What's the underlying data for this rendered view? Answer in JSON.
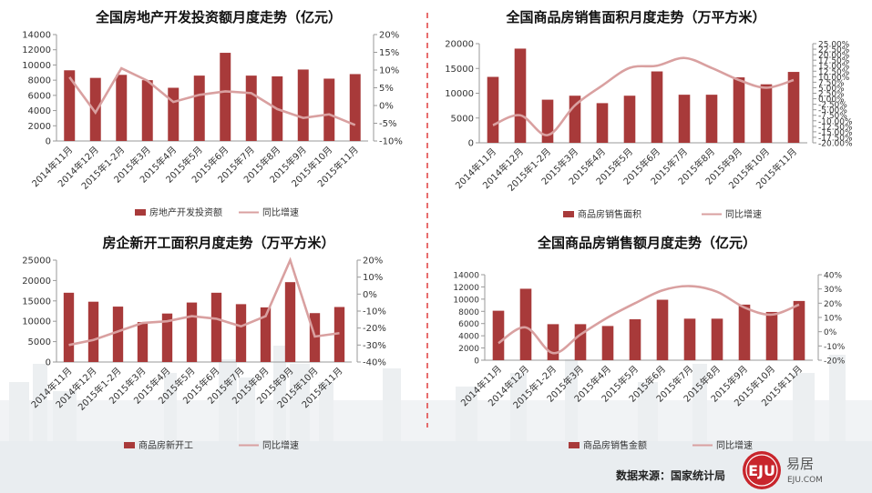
{
  "colors": {
    "bar": "#a83a3a",
    "line": "#d9a0a0",
    "axis": "#999999",
    "text": "#333333",
    "divider": "#e24a4a",
    "logo_red": "#c8252c"
  },
  "charts": [
    {
      "title": "全国房地产开发投资额月度走势（亿元）",
      "categories": [
        "2014年11月",
        "2014年12月",
        "2015年1-2月",
        "2015年3月",
        "2015年4月",
        "2015年5月",
        "2015年6月",
        "2015年7月",
        "2015年8月",
        "2015年9月",
        "2015年10月",
        "2015年11月"
      ],
      "bar_name": "房地产开发投资额",
      "bar_values": [
        9300,
        8300,
        8700,
        8000,
        7000,
        8600,
        11600,
        8600,
        8500,
        9400,
        8200,
        8800
      ],
      "line_name": "同比增速",
      "line_values": [
        8,
        -2,
        10.5,
        7,
        1,
        3,
        4,
        3.5,
        -1,
        -3.5,
        -2.5,
        -5.5
      ],
      "left_axis": {
        "min": 0,
        "max": 14000,
        "step": 2000,
        "ticks": [
          "0",
          "2000",
          "4000",
          "6000",
          "8000",
          "10000",
          "12000",
          "14000"
        ]
      },
      "right_axis": {
        "min": -10,
        "max": 20,
        "step": 5,
        "ticks": [
          "-10%",
          "-5%",
          "0%",
          "5%",
          "10%",
          "15%",
          "20%"
        ]
      }
    },
    {
      "title": "全国商品房销售面积月度走势（万平方米）",
      "categories": [
        "2014年11月",
        "2014年12月",
        "2015年1-2月",
        "2015年3月",
        "2015年4月",
        "2015年5月",
        "2015年6月",
        "2015年7月",
        "2015年8月",
        "2015年9月",
        "2015年10月",
        "2015年11月"
      ],
      "bar_name": "商品房销售面积",
      "bar_values": [
        13300,
        19000,
        8700,
        9500,
        8000,
        9500,
        14400,
        9700,
        9700,
        13200,
        11800,
        14300
      ],
      "line_name": "同比增速",
      "line_values": [
        -12,
        -7.5,
        -16.5,
        -3,
        6,
        14,
        15,
        18.5,
        14,
        8.5,
        5,
        8.5
      ],
      "left_axis": {
        "min": 0,
        "max": 20000,
        "step": 5000,
        "ticks": [
          "0",
          "5000",
          "10000",
          "15000",
          "20000"
        ]
      },
      "right_axis": {
        "min": -20,
        "max": 25,
        "step": 2.5,
        "ticks": [
          "-20.00%",
          "-17.50%",
          "-15.00%",
          "-12.50%",
          "-10.00%",
          "-7.50%",
          "-5.00%",
          "-2.50%",
          "0.00%",
          "2.50%",
          "5.00%",
          "7.50%",
          "10.00%",
          "12.50%",
          "15.00%",
          "17.50%",
          "20.00%",
          "22.50%",
          "25.00%"
        ]
      }
    },
    {
      "title": "房企新开工面积月度走势（万平方米）",
      "categories": [
        "2014年11月",
        "2014年12月",
        "2015年1-2月",
        "2015年3月",
        "2015年4月",
        "2015年5月",
        "2015年6月",
        "2015年7月",
        "2015年8月",
        "2015年9月",
        "2015年10月",
        "2015年11月"
      ],
      "bar_name": "商品房新开工",
      "bar_values": [
        17000,
        14800,
        13600,
        9800,
        11900,
        14600,
        17000,
        14200,
        13400,
        19600,
        12000,
        13500
      ],
      "line_name": "同比增速",
      "line_values": [
        -30,
        -27,
        -22,
        -17,
        -16,
        -13,
        -14.5,
        -19,
        -13,
        20,
        -25,
        -23
      ],
      "left_axis": {
        "min": 0,
        "max": 25000,
        "step": 5000,
        "ticks": [
          "0",
          "5000",
          "10000",
          "15000",
          "20000",
          "25000"
        ]
      },
      "right_axis": {
        "min": -40,
        "max": 20,
        "step": 10,
        "ticks": [
          "-40%",
          "-30%",
          "-20%",
          "-10%",
          "0%",
          "10%",
          "20%"
        ]
      }
    },
    {
      "title": "全国商品房销售额月度走势（亿元）",
      "categories": [
        "2014年11月",
        "2014年12月",
        "2015年1-2月",
        "2015年3月",
        "2015年4月",
        "2015年5月",
        "2015年6月",
        "2015年7月",
        "2015年8月",
        "2015年9月",
        "2015年10月",
        "2015年11月"
      ],
      "bar_name": "商品房销售金额",
      "bar_values": [
        8100,
        11700,
        5900,
        5900,
        5600,
        6700,
        9900,
        6800,
        6800,
        9100,
        7900,
        9700
      ],
      "line_name": "同比增速",
      "line_values": [
        -8,
        3,
        -15,
        -2,
        10,
        20,
        29,
        32,
        28,
        17,
        12,
        19
      ],
      "left_axis": {
        "min": 0,
        "max": 14000,
        "step": 2000,
        "ticks": [
          "0",
          "2000",
          "4000",
          "6000",
          "8000",
          "10000",
          "12000",
          "14000"
        ]
      },
      "right_axis": {
        "min": -20,
        "max": 40,
        "step": 10,
        "ticks": [
          "-20%",
          "-10%",
          "0%",
          "10%",
          "20%",
          "30%",
          "40%"
        ]
      }
    }
  ],
  "footer": {
    "source": "数据来源：国家统计局",
    "logo_text": "EJU",
    "logo_cn": "易居",
    "logo_url": "EJU.COM"
  }
}
